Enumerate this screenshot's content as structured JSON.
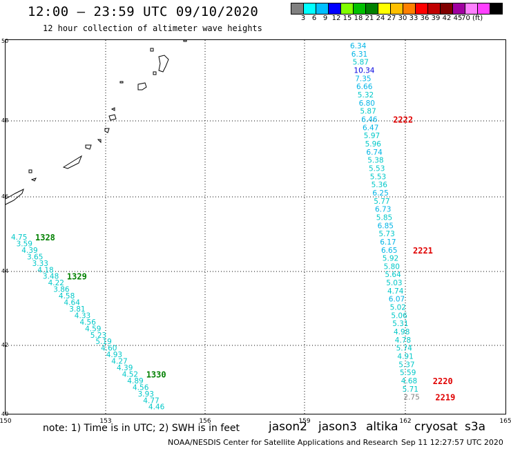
{
  "header": {
    "title": "12:00 – 23:59 UTC 09/10/2020",
    "subtitle": "12 hour collection of altimeter wave heights"
  },
  "color_scale": {
    "colors": [
      "#808080",
      "#00ffff",
      "#00bfff",
      "#0000ff",
      "#80ff00",
      "#00c000",
      "#008000",
      "#ffff00",
      "#ffc000",
      "#ff8000",
      "#ff0000",
      "#c00000",
      "#800000",
      "#a000a0",
      "#ff80ff",
      "#ff40ff",
      "#000000"
    ],
    "labels": [
      "3",
      "6",
      "9",
      "12",
      "15",
      "18",
      "21",
      "24",
      "27",
      "30",
      "33",
      "36",
      "39",
      "42",
      "45",
      "70 (ft)"
    ]
  },
  "map": {
    "lon_labels": [
      "150",
      "153",
      "156",
      "159",
      "162",
      "165"
    ],
    "lat_labels": [
      "50",
      "48",
      "46",
      "44",
      "42",
      "40"
    ],
    "tracks": [
      {
        "id": "1328",
        "label_color": "#008000",
        "points": [
          {
            "v": "4.75",
            "c": "#00c8c8"
          },
          {
            "v": "3.59",
            "c": "#00c8c8"
          },
          {
            "v": "4.39",
            "c": "#00c8c8"
          },
          {
            "v": "3.65",
            "c": "#00c8c8"
          },
          {
            "v": "3.33",
            "c": "#00c8c8"
          },
          {
            "v": "4.18",
            "c": "#00c8c8"
          },
          {
            "v": "3.48",
            "c": "#00c8c8"
          },
          {
            "v": "4.22",
            "c": "#00c8c8"
          },
          {
            "v": "3.86",
            "c": "#00c8c8"
          },
          {
            "v": "4.58",
            "c": "#00c8c8"
          },
          {
            "v": "4.64",
            "c": "#00c8c8"
          },
          {
            "v": "3.81",
            "c": "#00c8c8"
          },
          {
            "v": "4.33",
            "c": "#00c8c8"
          },
          {
            "v": "4.56",
            "c": "#00c8c8"
          },
          {
            "v": "4.59",
            "c": "#00c8c8"
          },
          {
            "v": "5.23",
            "c": "#00c8c8"
          },
          {
            "v": "5.19",
            "c": "#00c8c8"
          },
          {
            "v": "4.60",
            "c": "#00c8c8"
          },
          {
            "v": "4.93",
            "c": "#00c8c8"
          },
          {
            "v": "4.27",
            "c": "#00c8c8"
          },
          {
            "v": "4.39",
            "c": "#00c8c8"
          },
          {
            "v": "4.52",
            "c": "#00c8c8"
          },
          {
            "v": "4.89",
            "c": "#00c8c8"
          },
          {
            "v": "4.56",
            "c": "#00c8c8"
          },
          {
            "v": "3.93",
            "c": "#00c8c8"
          },
          {
            "v": "4.77",
            "c": "#00c8c8"
          },
          {
            "v": "4.46",
            "c": "#00c8c8"
          }
        ],
        "markers": [
          {
            "text": "1328",
            "at": 0
          },
          {
            "text": "1329",
            "at": 6
          },
          {
            "text": "1330",
            "at": 21
          }
        ]
      },
      {
        "id": "2222",
        "label_color": "#e00000",
        "points": [
          {
            "v": "6.34",
            "c": "#00b4e6"
          },
          {
            "v": "6.31",
            "c": "#00b4e6"
          },
          {
            "v": "5.87",
            "c": "#00c8c8"
          },
          {
            "v": "10.34",
            "c": "#0000e0"
          },
          {
            "v": "7.35",
            "c": "#00b4e6"
          },
          {
            "v": "6.66",
            "c": "#00b4e6"
          },
          {
            "v": "5.32",
            "c": "#00c8c8"
          },
          {
            "v": "6.80",
            "c": "#00b4e6"
          },
          {
            "v": "5.87",
            "c": "#00c8c8"
          },
          {
            "v": "6.46",
            "c": "#00b4e6"
          },
          {
            "v": "6.47",
            "c": "#00b4e6"
          },
          {
            "v": "5.97",
            "c": "#00c8c8"
          },
          {
            "v": "5.96",
            "c": "#00c8c8"
          },
          {
            "v": "6.74",
            "c": "#00b4e6"
          },
          {
            "v": "5.38",
            "c": "#00c8c8"
          },
          {
            "v": "5.53",
            "c": "#00c8c8"
          },
          {
            "v": "5.53",
            "c": "#00c8c8"
          },
          {
            "v": "5.36",
            "c": "#00c8c8"
          },
          {
            "v": "6.25",
            "c": "#00b4e6"
          },
          {
            "v": "5.77",
            "c": "#00c8c8"
          },
          {
            "v": "6.73",
            "c": "#00b4e6"
          },
          {
            "v": "5.85",
            "c": "#00c8c8"
          },
          {
            "v": "6.85",
            "c": "#00b4e6"
          },
          {
            "v": "5.73",
            "c": "#00c8c8"
          },
          {
            "v": "6.17",
            "c": "#00b4e6"
          },
          {
            "v": "6.65",
            "c": "#00b4e6"
          },
          {
            "v": "5.92",
            "c": "#00c8c8"
          },
          {
            "v": "5.80",
            "c": "#00c8c8"
          },
          {
            "v": "5.64",
            "c": "#00c8c8"
          },
          {
            "v": "5.03",
            "c": "#00c8c8"
          },
          {
            "v": "4.74",
            "c": "#00c8c8"
          },
          {
            "v": "6.07",
            "c": "#00b4e6"
          },
          {
            "v": "5.02",
            "c": "#00c8c8"
          },
          {
            "v": "5.06",
            "c": "#00c8c8"
          },
          {
            "v": "5.31",
            "c": "#00c8c8"
          },
          {
            "v": "4.98",
            "c": "#00c8c8"
          },
          {
            "v": "4.78",
            "c": "#00c8c8"
          },
          {
            "v": "5.74",
            "c": "#00c8c8"
          },
          {
            "v": "4.91",
            "c": "#00c8c8"
          },
          {
            "v": "5.37",
            "c": "#00c8c8"
          },
          {
            "v": "5.59",
            "c": "#00c8c8"
          },
          {
            "v": "4.68",
            "c": "#00c8c8"
          },
          {
            "v": "5.71",
            "c": "#00c8c8"
          },
          {
            "v": "2.75",
            "c": "#808080"
          }
        ],
        "markers": [
          {
            "text": "2222",
            "at": 9
          },
          {
            "text": "2221",
            "at": 25
          },
          {
            "text": "2220",
            "at": 41
          },
          {
            "text": "2219",
            "at": 43
          }
        ]
      }
    ]
  },
  "footer": {
    "note": "note: 1) Time is in UTC; 2) SWH is in feet",
    "satellites": [
      {
        "name": "jason2",
        "color": "#0000ff"
      },
      {
        "name": "jason3",
        "color": "#009000"
      },
      {
        "name": "altika",
        "color": "#ff9900"
      },
      {
        "name": "cryosat",
        "color": "#ff0000"
      },
      {
        "name": "s3a",
        "color": "#e00000"
      }
    ],
    "credit": "NOAA/NESDIS Center for Satellite Applications and Research",
    "generated": "Sep 11 12:27:57 UTC 2020"
  }
}
